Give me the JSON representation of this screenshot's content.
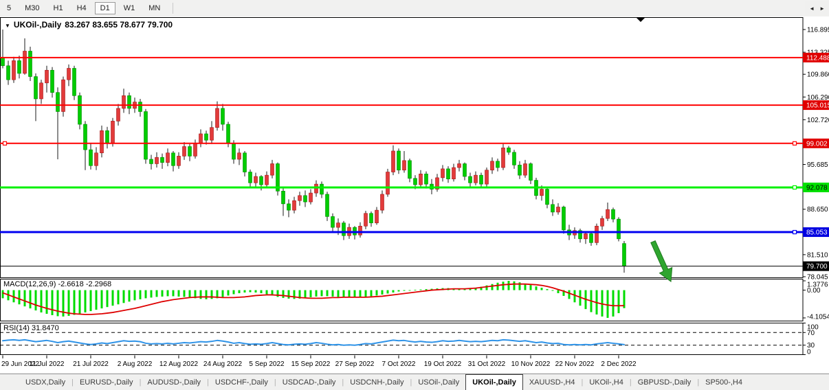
{
  "toolbar": {
    "timeframes": [
      {
        "label": "5",
        "active": false
      },
      {
        "label": "M30",
        "active": false
      },
      {
        "label": "H1",
        "active": false
      },
      {
        "label": "H4",
        "active": false
      },
      {
        "label": "D1",
        "active": true
      },
      {
        "label": "W1",
        "active": false
      },
      {
        "label": "MN",
        "active": false
      }
    ]
  },
  "chart_header": {
    "dropdown_icon": "▼",
    "symbol": "UKOil-,Daily",
    "ohlc": "83.267 83.655 78.677 79.700"
  },
  "indicators": {
    "macd_label": "MACD(12,26,9) -2.6618 -2.2968",
    "rsi_label": "RSI(14) 31.8470"
  },
  "price_axis": {
    "ticks": [
      {
        "label": "116.895",
        "value": 116.895
      },
      {
        "label": "113.325",
        "value": 113.325
      },
      {
        "label": "109.860",
        "value": 109.86
      },
      {
        "label": "106.290",
        "value": 106.29
      },
      {
        "label": "102.720",
        "value": 102.72
      },
      {
        "label": "95.685",
        "value": 95.685
      },
      {
        "label": "88.650",
        "value": 88.65
      },
      {
        "label": "81.510",
        "value": 81.51
      },
      {
        "label": "78.045",
        "value": 78.045
      }
    ],
    "badges": [
      {
        "label": "112.488",
        "value": 112.488,
        "bg": "#E00000",
        "fg": "#FFFFFF"
      },
      {
        "label": "105.015",
        "value": 105.015,
        "bg": "#E00000",
        "fg": "#FFFFFF"
      },
      {
        "label": "99.002",
        "value": 99.002,
        "bg": "#E00000",
        "fg": "#FFFFFF"
      },
      {
        "label": "92.078",
        "value": 92.078,
        "bg": "#00E000",
        "fg": "#000000"
      },
      {
        "label": "85.053",
        "value": 85.053,
        "bg": "#0000E0",
        "fg": "#FFFFFF"
      },
      {
        "label": "79.700",
        "value": 79.7,
        "bg": "#000000",
        "fg": "#FFFFFF"
      }
    ]
  },
  "macd_axis": [
    {
      "label": "1.3776",
      "value": 1.3776
    },
    {
      "label": "0.00",
      "value": 0
    },
    {
      "label": "-4.1054",
      "value": -4.1054
    }
  ],
  "rsi_axis": [
    {
      "label": "100",
      "value": 100
    },
    {
      "label": "70",
      "value": 70
    },
    {
      "label": "30",
      "value": 30
    },
    {
      "label": "0",
      "value": 0
    }
  ],
  "levels": [
    {
      "price": 112.488,
      "color": "#FF0000",
      "width": 2,
      "handles": []
    },
    {
      "price": 105.015,
      "color": "#FF0000",
      "width": 2,
      "handles": []
    },
    {
      "price": 99.002,
      "color": "#FF0000",
      "width": 2,
      "handles": [
        "left",
        "right"
      ]
    },
    {
      "price": 92.078,
      "color": "#00F000",
      "width": 3,
      "handles": [
        "right"
      ]
    },
    {
      "price": 85.053,
      "color": "#0000F0",
      "width": 3,
      "handles": [
        "right"
      ]
    },
    {
      "price": 79.7,
      "color": "#000000",
      "width": 1,
      "handles": []
    }
  ],
  "annotations": [
    {
      "type": "down-arrow",
      "color": "#2FA52F"
    },
    {
      "type": "autoscroll-marker",
      "color": "#000000"
    }
  ],
  "chart_data": {
    "type": "candlestick+macd+rsi",
    "symbol": "UKOil-",
    "timeframe": "Daily",
    "ohlc_current": {
      "open": 83.267,
      "high": 83.655,
      "low": 78.677,
      "close": 79.7
    },
    "up_color": "#E23B3B",
    "down_color": "#00CD00",
    "x_dates": [
      {
        "label": "29 Jun 2022",
        "index": 0
      },
      {
        "label": "11 Jul 2022",
        "index": 8
      },
      {
        "label": "21 Jul 2022",
        "index": 16
      },
      {
        "label": "2 Aug 2022",
        "index": 24
      },
      {
        "label": "12 Aug 2022",
        "index": 32
      },
      {
        "label": "24 Aug 2022",
        "index": 40
      },
      {
        "label": "5 Sep 2022",
        "index": 48
      },
      {
        "label": "15 Sep 2022",
        "index": 56
      },
      {
        "label": "27 Sep 2022",
        "index": 64
      },
      {
        "label": "7 Oct 2022",
        "index": 72
      },
      {
        "label": "19 Oct 2022",
        "index": 80
      },
      {
        "label": "31 Oct 2022",
        "index": 88
      },
      {
        "label": "10 Nov 2022",
        "index": 96
      },
      {
        "label": "22 Nov 2022",
        "index": 104
      },
      {
        "label": "2 Dec 2022",
        "index": 112
      }
    ],
    "candles": [
      [
        112.5,
        116.9,
        110.8,
        111.2
      ],
      [
        111.2,
        112.0,
        108.2,
        109.0
      ],
      [
        109.0,
        112.6,
        108.5,
        112.0
      ],
      [
        112.0,
        112.8,
        109.2,
        110.0
      ],
      [
        110.0,
        115.5,
        109.8,
        113.5
      ],
      [
        113.5,
        114.2,
        108.8,
        109.5
      ],
      [
        109.5,
        110.0,
        102.5,
        106.0
      ],
      [
        106.0,
        109.0,
        105.2,
        108.5
      ],
      [
        108.5,
        111.2,
        107.0,
        110.5
      ],
      [
        110.5,
        111.0,
        106.2,
        107.0
      ],
      [
        107.0,
        107.8,
        96.5,
        104.0
      ],
      [
        104.0,
        109.5,
        103.2,
        109.0
      ],
      [
        109.0,
        111.4,
        108.0,
        110.8
      ],
      [
        110.8,
        111.2,
        105.8,
        106.5
      ],
      [
        106.5,
        107.0,
        101.2,
        102.0
      ],
      [
        102.0,
        102.5,
        94.8,
        98.0
      ],
      [
        98.0,
        99.0,
        94.9,
        95.5
      ],
      [
        95.5,
        98.4,
        94.8,
        97.5
      ],
      [
        97.5,
        101.8,
        96.8,
        101.0
      ],
      [
        101.0,
        101.6,
        98.2,
        99.0
      ],
      [
        99.0,
        103.0,
        98.5,
        102.5
      ],
      [
        102.5,
        105.2,
        101.8,
        104.5
      ],
      [
        104.5,
        107.6,
        103.8,
        106.5
      ],
      [
        106.5,
        107.0,
        103.6,
        104.5
      ],
      [
        104.5,
        106.2,
        103.8,
        105.5
      ],
      [
        105.5,
        106.0,
        103.2,
        104.0
      ],
      [
        104.0,
        104.4,
        95.8,
        96.5
      ],
      [
        96.5,
        97.2,
        94.9,
        95.8
      ],
      [
        95.8,
        97.6,
        95.2,
        96.8
      ],
      [
        96.8,
        97.4,
        95.0,
        96.0
      ],
      [
        96.0,
        98.2,
        95.4,
        97.5
      ],
      [
        97.5,
        97.8,
        94.6,
        95.5
      ],
      [
        95.5,
        97.6,
        95.0,
        97.0
      ],
      [
        97.0,
        99.2,
        96.4,
        98.5
      ],
      [
        98.5,
        98.9,
        96.2,
        97.0
      ],
      [
        97.0,
        99.6,
        96.6,
        99.0
      ],
      [
        99.0,
        101.2,
        98.4,
        100.5
      ],
      [
        100.5,
        101.0,
        98.8,
        99.5
      ],
      [
        99.5,
        102.5,
        98.9,
        101.5
      ],
      [
        101.5,
        105.6,
        101.0,
        104.5
      ],
      [
        104.5,
        105.2,
        101.0,
        102.0
      ],
      [
        102.0,
        102.4,
        98.4,
        99.0
      ],
      [
        99.0,
        99.5,
        95.8,
        96.5
      ],
      [
        96.5,
        98.2,
        95.6,
        97.5
      ],
      [
        97.5,
        97.8,
        93.8,
        94.5
      ],
      [
        94.5,
        94.9,
        92.0,
        92.8
      ],
      [
        92.8,
        94.4,
        92.2,
        93.8
      ],
      [
        93.8,
        94.0,
        91.6,
        92.5
      ],
      [
        92.5,
        94.6,
        92.0,
        94.0
      ],
      [
        94.0,
        96.4,
        93.5,
        95.8
      ],
      [
        95.8,
        96.0,
        90.8,
        91.5
      ],
      [
        91.5,
        92.0,
        87.6,
        89.5
      ],
      [
        89.5,
        90.2,
        87.4,
        88.5
      ],
      [
        88.5,
        90.6,
        88.0,
        90.0
      ],
      [
        90.0,
        91.4,
        89.2,
        90.8
      ],
      [
        90.8,
        91.6,
        89.0,
        89.8
      ],
      [
        89.8,
        91.8,
        89.4,
        91.2
      ],
      [
        91.2,
        93.2,
        90.6,
        92.6
      ],
      [
        92.6,
        93.0,
        90.4,
        91.0
      ],
      [
        91.0,
        91.4,
        86.8,
        87.5
      ],
      [
        87.5,
        88.0,
        85.0,
        85.8
      ],
      [
        85.8,
        87.2,
        84.6,
        86.5
      ],
      [
        86.5,
        86.8,
        83.8,
        84.5
      ],
      [
        84.5,
        86.4,
        84.0,
        85.8
      ],
      [
        85.8,
        86.0,
        83.9,
        84.6
      ],
      [
        84.6,
        86.6,
        84.2,
        86.0
      ],
      [
        86.0,
        88.4,
        85.5,
        88.0
      ],
      [
        88.0,
        88.3,
        85.9,
        86.5
      ],
      [
        86.5,
        89.0,
        86.2,
        88.5
      ],
      [
        88.5,
        91.6,
        88.0,
        91.0
      ],
      [
        91.0,
        95.0,
        90.6,
        94.5
      ],
      [
        94.5,
        98.7,
        94.0,
        97.8
      ],
      [
        97.8,
        98.2,
        94.2,
        94.8
      ],
      [
        94.8,
        97.8,
        94.4,
        96.3
      ],
      [
        96.3,
        96.6,
        92.9,
        93.5
      ],
      [
        93.5,
        94.0,
        91.8,
        92.5
      ],
      [
        92.5,
        94.8,
        92.2,
        94.2
      ],
      [
        94.2,
        94.6,
        91.9,
        92.6
      ],
      [
        92.6,
        93.4,
        91.0,
        91.8
      ],
      [
        91.8,
        94.2,
        91.4,
        93.6
      ],
      [
        93.6,
        95.6,
        93.0,
        95.0
      ],
      [
        95.0,
        95.4,
        92.8,
        93.4
      ],
      [
        93.4,
        95.8,
        93.0,
        95.2
      ],
      [
        95.2,
        96.4,
        94.6,
        95.8
      ],
      [
        95.8,
        96.0,
        93.2,
        93.8
      ],
      [
        93.8,
        94.4,
        92.2,
        92.8
      ],
      [
        92.8,
        94.6,
        92.4,
        94.0
      ],
      [
        94.0,
        94.4,
        92.0,
        92.6
      ],
      [
        92.6,
        95.2,
        92.2,
        94.8
      ],
      [
        94.8,
        96.8,
        94.2,
        96.2
      ],
      [
        96.2,
        96.6,
        94.6,
        95.2
      ],
      [
        95.2,
        98.9,
        94.8,
        98.3
      ],
      [
        98.3,
        98.6,
        97.2,
        97.6
      ],
      [
        97.6,
        98.0,
        95.0,
        95.6
      ],
      [
        95.6,
        96.2,
        93.4,
        94.0
      ],
      [
        94.0,
        96.4,
        93.6,
        95.8
      ],
      [
        95.8,
        96.0,
        92.6,
        93.2
      ],
      [
        93.2,
        93.6,
        90.2,
        90.8
      ],
      [
        90.8,
        92.4,
        90.0,
        91.8
      ],
      [
        91.8,
        92.0,
        88.8,
        89.4
      ],
      [
        89.4,
        90.2,
        87.6,
        88.2
      ],
      [
        88.2,
        89.6,
        87.8,
        89.0
      ],
      [
        89.0,
        89.2,
        84.8,
        85.4
      ],
      [
        85.4,
        86.2,
        83.8,
        84.6
      ],
      [
        84.6,
        85.8,
        84.0,
        85.3
      ],
      [
        85.3,
        85.6,
        83.4,
        84.0
      ],
      [
        84.0,
        85.2,
        83.2,
        84.8
      ],
      [
        84.8,
        85.0,
        82.9,
        83.4
      ],
      [
        83.4,
        86.4,
        83.0,
        86.0
      ],
      [
        86.0,
        87.6,
        85.4,
        87.2
      ],
      [
        87.2,
        89.7,
        86.8,
        88.6
      ],
      [
        88.6,
        88.9,
        86.6,
        87.1
      ],
      [
        87.1,
        87.4,
        83.6,
        84.0
      ],
      [
        83.267,
        83.655,
        78.677,
        79.7
      ]
    ],
    "macd": {
      "range": [
        -4.1054,
        1.3776
      ],
      "histogram": [
        -1.2,
        -1.5,
        -1.8,
        -2.1,
        -2.4,
        -2.7,
        -3.0,
        -3.3,
        -3.5,
        -3.7,
        -3.85,
        -3.9,
        -3.8,
        -3.65,
        -3.5,
        -3.3,
        -3.1,
        -2.9,
        -2.7,
        -2.5,
        -2.3,
        -2.1,
        -1.9,
        -1.7,
        -1.5,
        -1.35,
        -1.2,
        -1.1,
        -1.0,
        -0.95,
        -0.9,
        -0.9,
        -0.95,
        -1.0,
        -1.1,
        -1.2,
        -1.3,
        -1.35,
        -1.3,
        -1.2,
        -1.0,
        -0.8,
        -0.6,
        -0.45,
        -0.35,
        -0.3,
        -0.35,
        -0.45,
        -0.6,
        -0.8,
        -1.0,
        -1.15,
        -1.25,
        -1.3,
        -1.25,
        -1.15,
        -1.05,
        -0.95,
        -0.9,
        -0.9,
        -0.95,
        -1.0,
        -1.05,
        -1.1,
        -1.1,
        -1.05,
        -1.0,
        -0.9,
        -0.8,
        -0.65,
        -0.5,
        -0.35,
        -0.2,
        -0.1,
        -0.05,
        0.05,
        0.1,
        0.15,
        0.2,
        0.25,
        0.3,
        0.3,
        0.25,
        0.2,
        0.2,
        0.25,
        0.35,
        0.5,
        0.7,
        0.9,
        1.1,
        1.25,
        1.38,
        1.3,
        1.15,
        0.95,
        0.75,
        0.55,
        0.35,
        0.15,
        -0.1,
        -0.45,
        -0.85,
        -1.3,
        -1.8,
        -2.3,
        -2.8,
        -3.25,
        -3.6,
        -3.9,
        -4.1,
        -3.9,
        -3.4,
        -2.6618
      ],
      "signal": [
        -0.4,
        -0.7,
        -1.0,
        -1.3,
        -1.6,
        -1.9,
        -2.2,
        -2.45,
        -2.7,
        -2.9,
        -3.1,
        -3.25,
        -3.4,
        -3.5,
        -3.55,
        -3.6,
        -3.6,
        -3.55,
        -3.5,
        -3.4,
        -3.3,
        -3.15,
        -3.0,
        -2.85,
        -2.7,
        -2.5,
        -2.3,
        -2.1,
        -1.9,
        -1.7,
        -1.55,
        -1.4,
        -1.3,
        -1.2,
        -1.1,
        -1.05,
        -1.0,
        -1.0,
        -1.0,
        -1.05,
        -1.1,
        -1.1,
        -1.1,
        -1.05,
        -1.0,
        -0.9,
        -0.8,
        -0.75,
        -0.7,
        -0.7,
        -0.75,
        -0.8,
        -0.9,
        -1.0,
        -1.1,
        -1.15,
        -1.2,
        -1.2,
        -1.2,
        -1.15,
        -1.1,
        -1.1,
        -1.05,
        -1.05,
        -1.05,
        -1.05,
        -1.05,
        -1.0,
        -0.95,
        -0.9,
        -0.8,
        -0.7,
        -0.6,
        -0.5,
        -0.4,
        -0.3,
        -0.2,
        -0.1,
        0.0,
        0.05,
        0.1,
        0.15,
        0.2,
        0.2,
        0.2,
        0.25,
        0.3,
        0.4,
        0.5,
        0.6,
        0.7,
        0.8,
        0.85,
        0.9,
        0.9,
        0.9,
        0.85,
        0.8,
        0.7,
        0.55,
        0.35,
        0.1,
        -0.15,
        -0.45,
        -0.75,
        -1.05,
        -1.35,
        -1.6,
        -1.85,
        -2.05,
        -2.2,
        -2.3,
        -2.3,
        -2.2968
      ]
    },
    "rsi": {
      "range": [
        0,
        100
      ],
      "levels": [
        70,
        30
      ],
      "values": [
        44,
        46,
        47,
        45,
        47,
        44,
        41,
        43,
        45,
        42,
        38,
        41,
        43,
        40,
        37,
        34,
        32,
        34,
        37,
        35,
        38,
        41,
        44,
        42,
        43,
        41,
        36,
        34,
        35,
        34,
        36,
        34,
        36,
        38,
        37,
        39,
        41,
        40,
        42,
        45,
        43,
        40,
        36,
        38,
        35,
        33,
        34,
        33,
        35,
        38,
        35,
        32,
        31,
        33,
        34,
        33,
        35,
        38,
        36,
        33,
        31,
        32,
        30,
        31,
        30,
        32,
        35,
        34,
        37,
        40,
        43,
        46,
        44,
        45,
        42,
        40,
        42,
        40,
        39,
        41,
        44,
        42,
        43,
        45,
        43,
        41,
        42,
        41,
        43,
        45,
        44,
        47,
        46,
        44,
        42,
        44,
        41,
        38,
        40,
        37,
        35,
        36,
        32,
        31,
        32,
        31,
        32,
        31,
        34,
        36,
        38,
        36,
        34,
        31.847
      ]
    }
  },
  "tabbar": {
    "tabs": [
      {
        "label": "USDX,Daily",
        "active": false
      },
      {
        "label": "EURUSD-,Daily",
        "active": false
      },
      {
        "label": "AUDUSD-,Daily",
        "active": false
      },
      {
        "label": "USDCHF-,Daily",
        "active": false
      },
      {
        "label": "USDCAD-,Daily",
        "active": false
      },
      {
        "label": "USDCNH-,Daily",
        "active": false
      },
      {
        "label": "USOil-,Daily",
        "active": false
      },
      {
        "label": "UKOil-,Daily",
        "active": true
      },
      {
        "label": "XAUUSD-,H4",
        "active": false
      },
      {
        "label": "UKOil-,H4",
        "active": false
      },
      {
        "label": "GBPUSD-,Daily",
        "active": false
      },
      {
        "label": "SP500-,H4",
        "active": false
      }
    ],
    "nav_icons": [
      "◄",
      "►"
    ]
  }
}
